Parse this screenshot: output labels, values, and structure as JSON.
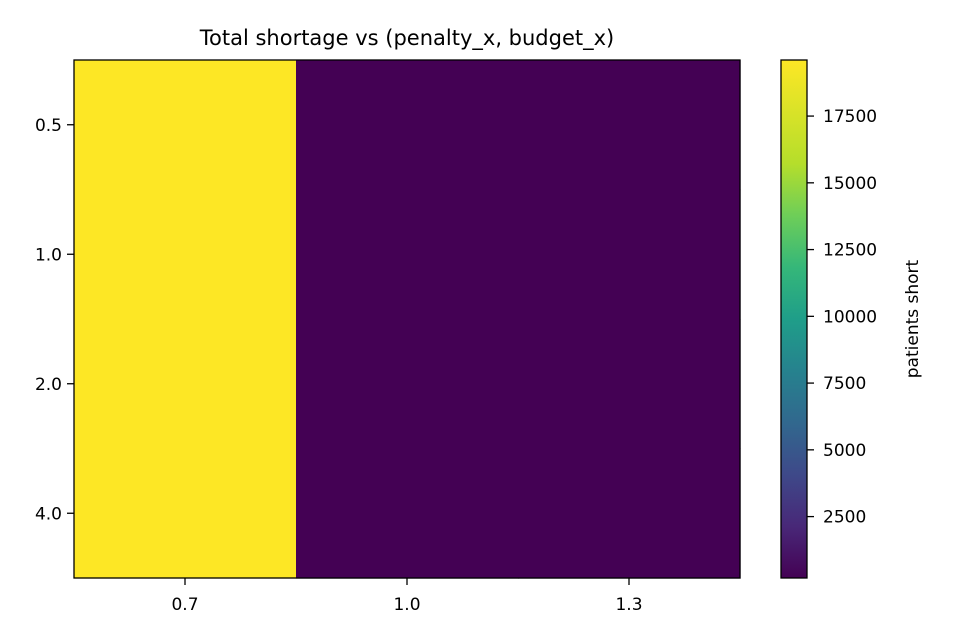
{
  "chart_data": {
    "type": "heatmap",
    "title": "Total shortage vs (penalty_x, budget_x)",
    "xlabel": "",
    "ylabel": "",
    "x_categories": [
      "0.7",
      "1.0",
      "1.3"
    ],
    "y_categories": [
      "0.5",
      "1.0",
      "2.0",
      "4.0"
    ],
    "values": [
      [
        19600,
        200,
        200
      ],
      [
        19600,
        200,
        200
      ],
      [
        19600,
        200,
        200
      ],
      [
        19600,
        200,
        200
      ]
    ],
    "colormap": "viridis",
    "colorbar": {
      "label": "patients short",
      "range": [
        200,
        19600
      ],
      "ticks": [
        2500,
        5000,
        7500,
        10000,
        12500,
        15000,
        17500
      ],
      "tick_labels": [
        "2500",
        "5000",
        "7500",
        "10000",
        "12500",
        "15000",
        "17500"
      ]
    },
    "colors": {
      "low": "#440154",
      "high": "#fde725"
    }
  }
}
